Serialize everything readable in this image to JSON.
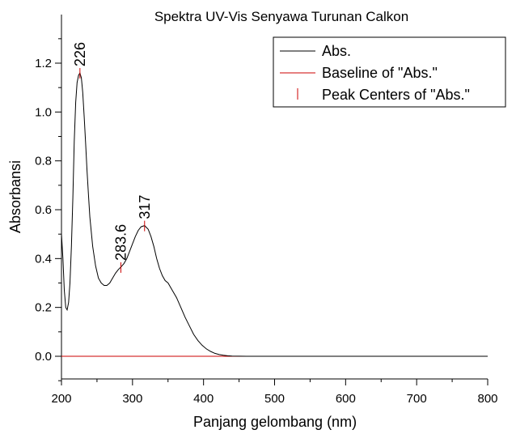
{
  "chart_data": {
    "type": "line",
    "title": "Spektra UV-Vis Senyawa Turunan Calkon",
    "xlabel": "Panjang gelombang (nm)",
    "ylabel": "Absorbansi",
    "xlim": [
      200,
      800
    ],
    "ylim": [
      -0.1,
      1.3
    ],
    "x_ticks": [
      200,
      300,
      400,
      500,
      600,
      700,
      800
    ],
    "y_ticks": [
      0.0,
      0.2,
      0.4,
      0.6,
      0.8,
      1.0,
      1.2
    ],
    "x_tick_labels": [
      "200",
      "300",
      "400",
      "500",
      "600",
      "700",
      "800"
    ],
    "y_tick_labels": [
      "0.0",
      "0.2",
      "0.4",
      "0.6",
      "0.8",
      "1.0",
      "1.2"
    ],
    "grid": false,
    "legend_position": "top-right",
    "series": [
      {
        "name": "Abs.",
        "color": "#000000",
        "x": [
          200,
          202,
          204,
          206,
          208,
          210,
          212,
          214,
          216,
          218,
          220,
          222,
          224,
          226,
          228,
          230,
          232,
          234,
          236,
          238,
          240,
          244,
          248,
          252,
          256,
          260,
          264,
          268,
          272,
          276,
          280,
          283.6,
          288,
          292,
          296,
          300,
          304,
          308,
          312,
          317,
          322,
          326,
          330,
          334,
          338,
          342,
          346,
          350,
          356,
          362,
          368,
          374,
          380,
          386,
          392,
          398,
          404,
          410,
          416,
          422,
          428,
          434,
          440,
          460,
          500,
          530,
          600,
          800
        ],
        "values": [
          0.5,
          0.4,
          0.27,
          0.2,
          0.19,
          0.22,
          0.3,
          0.45,
          0.65,
          0.88,
          1.04,
          1.12,
          1.15,
          1.16,
          1.14,
          1.08,
          0.98,
          0.87,
          0.76,
          0.66,
          0.57,
          0.45,
          0.37,
          0.32,
          0.3,
          0.29,
          0.29,
          0.3,
          0.32,
          0.34,
          0.355,
          0.365,
          0.38,
          0.4,
          0.43,
          0.46,
          0.49,
          0.515,
          0.53,
          0.535,
          0.52,
          0.49,
          0.45,
          0.4,
          0.36,
          0.33,
          0.31,
          0.3,
          0.27,
          0.24,
          0.2,
          0.16,
          0.125,
          0.09,
          0.065,
          0.045,
          0.03,
          0.02,
          0.012,
          0.007,
          0.004,
          0.002,
          0.001,
          0.0,
          0.0,
          0.0,
          0.0,
          0.0
        ]
      },
      {
        "name": "Baseline of \"Abs.\"",
        "color": "#cc0000",
        "x": [
          200,
          800
        ],
        "values": [
          0.0,
          0.0
        ]
      },
      {
        "name": "Peak Centers of \"Abs.\"",
        "color": "#cc0000",
        "type": "marker",
        "x": [
          226,
          283.6,
          317
        ],
        "values": [
          1.16,
          0.365,
          0.535
        ]
      }
    ],
    "annotations": [
      {
        "text": "226",
        "x": 226,
        "y": 1.16,
        "rotation": -90
      },
      {
        "text": "283.6",
        "x": 283.6,
        "y": 0.365,
        "rotation": -90
      },
      {
        "text": "317",
        "x": 317,
        "y": 0.535,
        "rotation": -90
      }
    ]
  },
  "legend": {
    "items": [
      {
        "label": "Abs.",
        "color": "#000000",
        "style": "line"
      },
      {
        "label": "Baseline of \"Abs.\"",
        "color": "#cc0000",
        "style": "line"
      },
      {
        "label": "Peak Centers of \"Abs.\"",
        "color": "#cc0000",
        "style": "tick"
      }
    ]
  }
}
